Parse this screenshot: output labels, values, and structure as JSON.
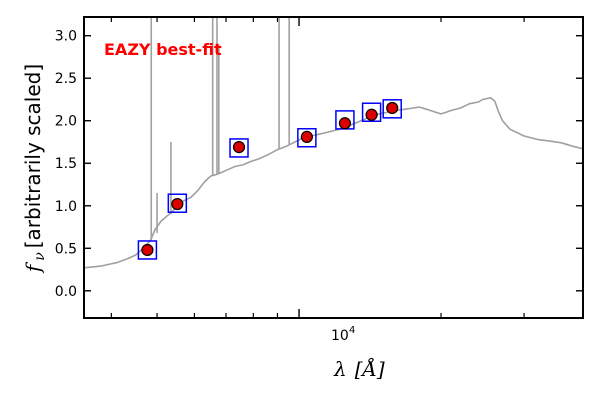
{
  "chart_data": {
    "type": "scatter",
    "title": "",
    "annotation": "EAZY best-fit",
    "annotation_color": "#ff0000",
    "xlabel_var": "λ",
    "xlabel_unit": "[Å]",
    "ylabel_var": "f",
    "ylabel_sub": "ν",
    "ylabel_rest": " [arbitrarily scaled]",
    "x_scale": "log",
    "xlim": [
      3500,
      40000
    ],
    "ylim": [
      -0.32,
      3.22
    ],
    "x_tick_label": {
      "value": 10000,
      "base": "10",
      "exp": "4"
    },
    "y_ticks": [
      0.0,
      0.5,
      1.0,
      1.5,
      2.0,
      2.5,
      3.0
    ],
    "y_tick_labels": [
      "0.0",
      "0.5",
      "1.0",
      "1.5",
      "2.0",
      "2.5",
      "3.0"
    ],
    "x_minor_ticks": [
      4000,
      5000,
      6000,
      7000,
      8000,
      9000,
      20000,
      30000,
      40000
    ],
    "grid": false,
    "series": [
      {
        "name": "best-fit template",
        "kind": "line",
        "color": "#a0a0a0",
        "x": [
          3500,
          3800,
          4100,
          4300,
          4500,
          4700,
          4850,
          4950,
          5100,
          5300,
          5500,
          5700,
          5900,
          6100,
          6300,
          6500,
          6700,
          6900,
          7100,
          7300,
          7600,
          7900,
          8200,
          8600,
          9000,
          9400,
          9800,
          10200,
          10600,
          11000,
          11400,
          11800,
          12200,
          12600,
          13000,
          13400,
          13800,
          14200,
          14600,
          15000,
          15500,
          16000,
          16500,
          17000,
          17500,
          18000,
          18500,
          19000,
          19500,
          20000,
          20500,
          21000,
          22000,
          23000,
          24000,
          24500,
          25000,
          25500,
          26000,
          26500,
          27000,
          28000,
          30000,
          32000,
          34000,
          36000,
          38000,
          40000
        ],
        "y": [
          0.27,
          0.29,
          0.33,
          0.37,
          0.42,
          0.51,
          0.6,
          0.72,
          0.82,
          0.9,
          0.98,
          1.06,
          1.1,
          1.18,
          1.28,
          1.35,
          1.37,
          1.4,
          1.43,
          1.46,
          1.48,
          1.52,
          1.55,
          1.6,
          1.66,
          1.7,
          1.75,
          1.8,
          1.82,
          1.84,
          1.86,
          1.88,
          1.9,
          1.93,
          1.96,
          1.99,
          2.02,
          2.05,
          2.07,
          2.09,
          2.1,
          2.12,
          2.13,
          2.14,
          2.15,
          2.16,
          2.14,
          2.12,
          2.1,
          2.08,
          2.1,
          2.12,
          2.15,
          2.2,
          2.22,
          2.25,
          2.26,
          2.27,
          2.23,
          2.1,
          2.0,
          1.9,
          1.82,
          1.78,
          1.76,
          1.74,
          1.7,
          1.67
        ]
      },
      {
        "name": "emission lines",
        "kind": "spikes",
        "color": "#a0a0a0",
        "lines": [
          {
            "x": 4860,
            "y_base": 0.6,
            "y_top": 3.22
          },
          {
            "x": 5000,
            "y_base": 0.68,
            "y_top": 1.15
          },
          {
            "x": 5350,
            "y_base": 0.9,
            "y_top": 1.75
          },
          {
            "x": 6560,
            "y_base": 1.35,
            "y_top": 3.22
          },
          {
            "x": 6700,
            "y_base": 1.37,
            "y_top": 3.22
          },
          {
            "x": 6760,
            "y_base": 1.38,
            "y_top": 2.9
          },
          {
            "x": 9070,
            "y_base": 1.67,
            "y_top": 3.22
          },
          {
            "x": 9530,
            "y_base": 1.71,
            "y_top": 3.22
          }
        ]
      },
      {
        "name": "model photometry",
        "kind": "open-square",
        "color": "#0000ff",
        "x": [
          4770,
          5520,
          7460,
          10390,
          12510,
          14250,
          15760
        ],
        "y": [
          0.48,
          1.03,
          1.68,
          1.8,
          2.01,
          2.1,
          2.14
        ]
      },
      {
        "name": "observed photometry",
        "kind": "filled-circle",
        "color": "#dd0000",
        "edge_color": "#000000",
        "x": [
          4770,
          5520,
          7460,
          10390,
          12510,
          14250,
          15760
        ],
        "y": [
          0.48,
          1.02,
          1.69,
          1.81,
          1.97,
          2.07,
          2.15
        ],
        "yerr": [
          0.02,
          0.02,
          0.02,
          0.02,
          0.06,
          0.03,
          0.02
        ]
      }
    ]
  }
}
